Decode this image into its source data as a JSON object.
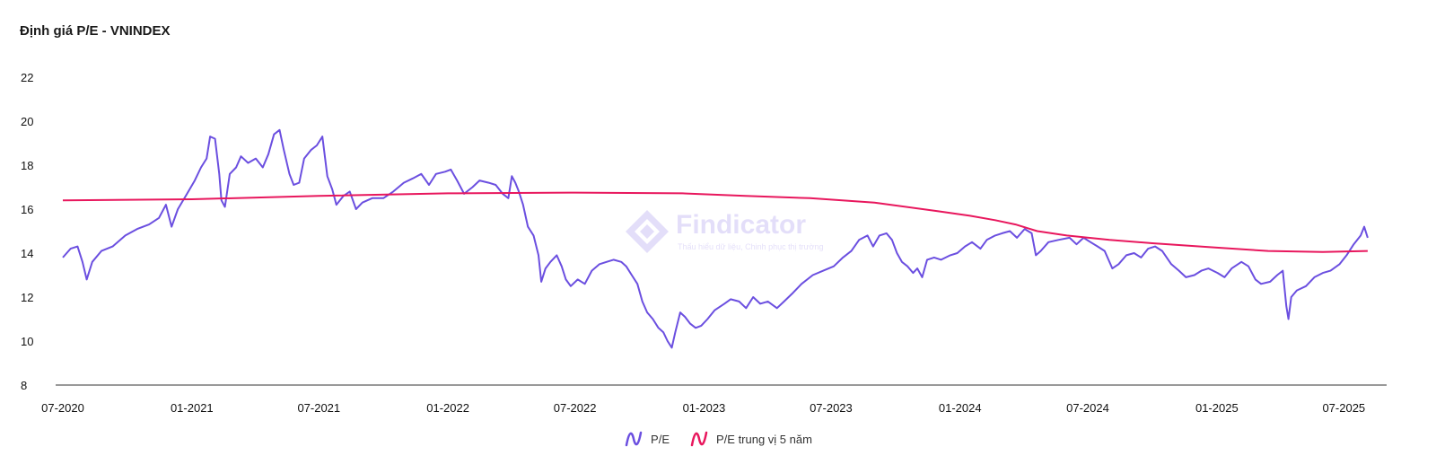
{
  "title": "Định giá P/E - VNINDEX",
  "watermark": {
    "name": "Findicator",
    "tagline": "Thấu hiểu dữ liệu, Chinh phục thị trường"
  },
  "colors": {
    "pe": "#6b4fe0",
    "median": "#e8175d",
    "axis": "#333333"
  },
  "chart_data": {
    "type": "line",
    "title": "Định giá P/E - VNINDEX",
    "x_ticks": [
      "07-2020",
      "01-2021",
      "07-2021",
      "01-2022",
      "07-2022",
      "01-2023",
      "07-2023",
      "01-2024",
      "07-2024",
      "01-2025",
      "07-2025"
    ],
    "y_ticks": [
      8,
      10,
      12,
      14,
      16,
      18,
      20,
      22
    ],
    "ylim": [
      8,
      22
    ],
    "xlim": [
      "2020-07-01",
      "2025-08-31"
    ],
    "grid": false,
    "legend_position": "bottom-center",
    "series": [
      {
        "name": "P/E",
        "points": [
          [
            "2020-07-01",
            13.8
          ],
          [
            "2020-07-12",
            14.2
          ],
          [
            "2020-07-22",
            14.3
          ],
          [
            "2020-07-29",
            13.6
          ],
          [
            "2020-08-04",
            12.8
          ],
          [
            "2020-08-12",
            13.6
          ],
          [
            "2020-08-25",
            14.1
          ],
          [
            "2020-09-10",
            14.3
          ],
          [
            "2020-09-28",
            14.8
          ],
          [
            "2020-10-15",
            15.1
          ],
          [
            "2020-11-01",
            15.3
          ],
          [
            "2020-11-15",
            15.6
          ],
          [
            "2020-11-25",
            16.2
          ],
          [
            "2020-12-03",
            15.2
          ],
          [
            "2020-12-12",
            16.0
          ],
          [
            "2020-12-25",
            16.7
          ],
          [
            "2021-01-05",
            17.3
          ],
          [
            "2021-01-14",
            17.9
          ],
          [
            "2021-01-22",
            18.3
          ],
          [
            "2021-01-27",
            19.3
          ],
          [
            "2021-02-03",
            19.2
          ],
          [
            "2021-02-09",
            17.6
          ],
          [
            "2021-02-12",
            16.4
          ],
          [
            "2021-02-17",
            16.1
          ],
          [
            "2021-02-24",
            17.6
          ],
          [
            "2021-03-05",
            17.9
          ],
          [
            "2021-03-12",
            18.4
          ],
          [
            "2021-03-22",
            18.1
          ],
          [
            "2021-04-02",
            18.3
          ],
          [
            "2021-04-12",
            17.9
          ],
          [
            "2021-04-20",
            18.5
          ],
          [
            "2021-04-28",
            19.4
          ],
          [
            "2021-05-06",
            19.6
          ],
          [
            "2021-05-12",
            18.7
          ],
          [
            "2021-05-20",
            17.6
          ],
          [
            "2021-05-26",
            17.1
          ],
          [
            "2021-06-03",
            17.2
          ],
          [
            "2021-06-10",
            18.3
          ],
          [
            "2021-06-20",
            18.7
          ],
          [
            "2021-06-28",
            18.9
          ],
          [
            "2021-07-06",
            19.3
          ],
          [
            "2021-07-13",
            17.5
          ],
          [
            "2021-07-20",
            16.9
          ],
          [
            "2021-07-26",
            16.2
          ],
          [
            "2021-08-05",
            16.6
          ],
          [
            "2021-08-14",
            16.8
          ],
          [
            "2021-08-23",
            16.0
          ],
          [
            "2021-09-01",
            16.3
          ],
          [
            "2021-09-15",
            16.5
          ],
          [
            "2021-10-01",
            16.5
          ],
          [
            "2021-10-15",
            16.8
          ],
          [
            "2021-10-30",
            17.2
          ],
          [
            "2021-11-12",
            17.4
          ],
          [
            "2021-11-24",
            17.6
          ],
          [
            "2021-12-05",
            17.1
          ],
          [
            "2021-12-15",
            17.6
          ],
          [
            "2021-12-28",
            17.7
          ],
          [
            "2022-01-05",
            17.8
          ],
          [
            "2022-01-14",
            17.3
          ],
          [
            "2022-01-24",
            16.7
          ],
          [
            "2022-02-05",
            17.0
          ],
          [
            "2022-02-15",
            17.3
          ],
          [
            "2022-02-28",
            17.2
          ],
          [
            "2022-03-10",
            17.1
          ],
          [
            "2022-03-20",
            16.7
          ],
          [
            "2022-03-28",
            16.5
          ],
          [
            "2022-04-02",
            17.5
          ],
          [
            "2022-04-07",
            17.2
          ],
          [
            "2022-04-12",
            16.8
          ],
          [
            "2022-04-18",
            16.2
          ],
          [
            "2022-04-25",
            15.2
          ],
          [
            "2022-05-03",
            14.8
          ],
          [
            "2022-05-10",
            13.9
          ],
          [
            "2022-05-14",
            12.7
          ],
          [
            "2022-05-20",
            13.3
          ],
          [
            "2022-05-27",
            13.6
          ],
          [
            "2022-06-05",
            13.9
          ],
          [
            "2022-06-12",
            13.4
          ],
          [
            "2022-06-18",
            12.8
          ],
          [
            "2022-06-25",
            12.5
          ],
          [
            "2022-07-05",
            12.8
          ],
          [
            "2022-07-15",
            12.6
          ],
          [
            "2022-07-25",
            13.2
          ],
          [
            "2022-08-05",
            13.5
          ],
          [
            "2022-08-15",
            13.6
          ],
          [
            "2022-08-25",
            13.7
          ],
          [
            "2022-09-05",
            13.6
          ],
          [
            "2022-09-12",
            13.4
          ],
          [
            "2022-09-20",
            13.0
          ],
          [
            "2022-09-28",
            12.6
          ],
          [
            "2022-10-05",
            11.8
          ],
          [
            "2022-10-12",
            11.3
          ],
          [
            "2022-10-20",
            11.0
          ],
          [
            "2022-10-28",
            10.6
          ],
          [
            "2022-11-04",
            10.4
          ],
          [
            "2022-11-10",
            10.0
          ],
          [
            "2022-11-16",
            9.7
          ],
          [
            "2022-11-21",
            10.4
          ],
          [
            "2022-11-28",
            11.3
          ],
          [
            "2022-12-05",
            11.1
          ],
          [
            "2022-12-12",
            10.8
          ],
          [
            "2022-12-20",
            10.6
          ],
          [
            "2022-12-28",
            10.7
          ],
          [
            "2023-01-06",
            11.0
          ],
          [
            "2023-01-16",
            11.4
          ],
          [
            "2023-01-30",
            11.7
          ],
          [
            "2023-02-08",
            11.9
          ],
          [
            "2023-02-20",
            11.8
          ],
          [
            "2023-03-02",
            11.5
          ],
          [
            "2023-03-12",
            12.0
          ],
          [
            "2023-03-22",
            11.7
          ],
          [
            "2023-04-02",
            11.8
          ],
          [
            "2023-04-15",
            11.5
          ],
          [
            "2023-04-25",
            11.8
          ],
          [
            "2023-05-08",
            12.2
          ],
          [
            "2023-05-20",
            12.6
          ],
          [
            "2023-06-05",
            13.0
          ],
          [
            "2023-06-20",
            13.2
          ],
          [
            "2023-07-05",
            13.4
          ],
          [
            "2023-07-18",
            13.8
          ],
          [
            "2023-07-30",
            14.1
          ],
          [
            "2023-08-10",
            14.6
          ],
          [
            "2023-08-22",
            14.8
          ],
          [
            "2023-08-30",
            14.3
          ],
          [
            "2023-09-08",
            14.8
          ],
          [
            "2023-09-18",
            14.9
          ],
          [
            "2023-09-26",
            14.6
          ],
          [
            "2023-10-03",
            14.0
          ],
          [
            "2023-10-10",
            13.6
          ],
          [
            "2023-10-18",
            13.4
          ],
          [
            "2023-10-26",
            13.1
          ],
          [
            "2023-11-01",
            13.3
          ],
          [
            "2023-11-08",
            12.9
          ],
          [
            "2023-11-15",
            13.7
          ],
          [
            "2023-11-25",
            13.8
          ],
          [
            "2023-12-05",
            13.7
          ],
          [
            "2023-12-18",
            13.9
          ],
          [
            "2023-12-28",
            14.0
          ],
          [
            "2024-01-08",
            14.3
          ],
          [
            "2024-01-18",
            14.5
          ],
          [
            "2024-01-30",
            14.2
          ],
          [
            "2024-02-08",
            14.6
          ],
          [
            "2024-02-20",
            14.8
          ],
          [
            "2024-03-01",
            14.9
          ],
          [
            "2024-03-12",
            15.0
          ],
          [
            "2024-03-22",
            14.7
          ],
          [
            "2024-04-02",
            15.1
          ],
          [
            "2024-04-12",
            14.9
          ],
          [
            "2024-04-18",
            13.9
          ],
          [
            "2024-04-25",
            14.1
          ],
          [
            "2024-05-06",
            14.5
          ],
          [
            "2024-05-20",
            14.6
          ],
          [
            "2024-06-05",
            14.7
          ],
          [
            "2024-06-15",
            14.4
          ],
          [
            "2024-06-25",
            14.7
          ],
          [
            "2024-07-05",
            14.5
          ],
          [
            "2024-07-15",
            14.3
          ],
          [
            "2024-07-25",
            14.1
          ],
          [
            "2024-08-05",
            13.3
          ],
          [
            "2024-08-14",
            13.5
          ],
          [
            "2024-08-25",
            13.9
          ],
          [
            "2024-09-05",
            14.0
          ],
          [
            "2024-09-15",
            13.8
          ],
          [
            "2024-09-25",
            14.2
          ],
          [
            "2024-10-05",
            14.3
          ],
          [
            "2024-10-15",
            14.1
          ],
          [
            "2024-10-28",
            13.5
          ],
          [
            "2024-11-08",
            13.2
          ],
          [
            "2024-11-18",
            12.9
          ],
          [
            "2024-11-30",
            13.0
          ],
          [
            "2024-12-10",
            13.2
          ],
          [
            "2024-12-20",
            13.3
          ],
          [
            "2025-01-02",
            13.1
          ],
          [
            "2025-01-12",
            12.9
          ],
          [
            "2025-01-22",
            13.3
          ],
          [
            "2025-02-05",
            13.6
          ],
          [
            "2025-02-15",
            13.4
          ],
          [
            "2025-02-25",
            12.8
          ],
          [
            "2025-03-05",
            12.6
          ],
          [
            "2025-03-18",
            12.7
          ],
          [
            "2025-03-28",
            13.0
          ],
          [
            "2025-04-05",
            13.2
          ],
          [
            "2025-04-10",
            11.6
          ],
          [
            "2025-04-13",
            11.0
          ],
          [
            "2025-04-17",
            12.0
          ],
          [
            "2025-04-25",
            12.3
          ],
          [
            "2025-05-08",
            12.5
          ],
          [
            "2025-05-20",
            12.9
          ],
          [
            "2025-06-01",
            13.1
          ],
          [
            "2025-06-12",
            13.2
          ],
          [
            "2025-06-25",
            13.5
          ],
          [
            "2025-07-05",
            13.9
          ],
          [
            "2025-07-15",
            14.4
          ],
          [
            "2025-07-25",
            14.8
          ],
          [
            "2025-07-30",
            15.2
          ],
          [
            "2025-08-04",
            14.7
          ]
        ]
      },
      {
        "name": "P/E trung vị 5 năm",
        "points": [
          [
            "2020-07-01",
            16.4
          ],
          [
            "2021-01-01",
            16.45
          ],
          [
            "2021-07-01",
            16.6
          ],
          [
            "2022-01-01",
            16.72
          ],
          [
            "2022-07-01",
            16.75
          ],
          [
            "2022-12-01",
            16.72
          ],
          [
            "2023-03-01",
            16.6
          ],
          [
            "2023-06-01",
            16.5
          ],
          [
            "2023-09-01",
            16.3
          ],
          [
            "2023-12-01",
            15.9
          ],
          [
            "2024-01-15",
            15.7
          ],
          [
            "2024-02-20",
            15.5
          ],
          [
            "2024-03-20",
            15.3
          ],
          [
            "2024-04-20",
            15.0
          ],
          [
            "2024-06-01",
            14.8
          ],
          [
            "2024-08-01",
            14.6
          ],
          [
            "2024-10-01",
            14.45
          ],
          [
            "2025-01-01",
            14.25
          ],
          [
            "2025-03-15",
            14.1
          ],
          [
            "2025-06-01",
            14.05
          ],
          [
            "2025-08-04",
            14.1
          ]
        ]
      }
    ]
  }
}
